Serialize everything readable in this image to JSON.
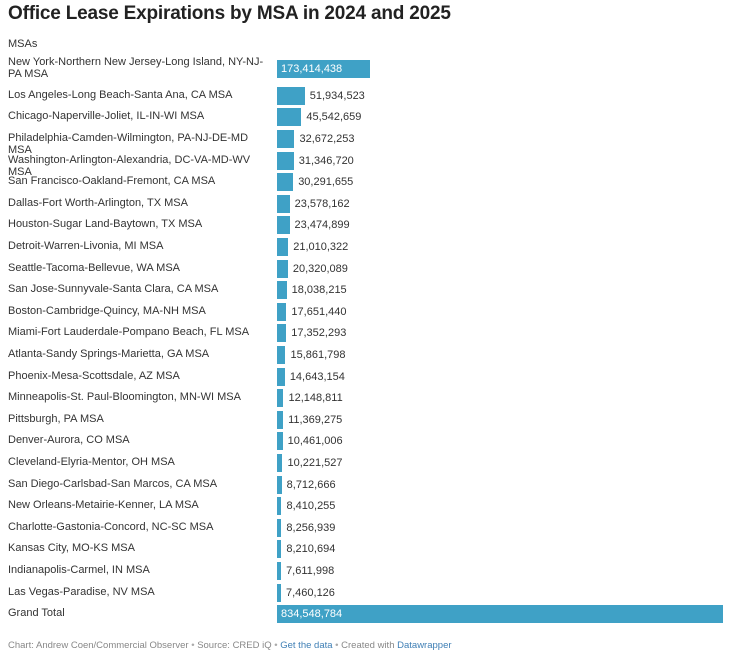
{
  "chart_data": {
    "type": "bar",
    "orientation": "horizontal",
    "title": "Office Lease Expirations by MSA in 2024 and 2025",
    "column_header": "MSAs",
    "categories": [
      "New York-Northern New Jersey-Long Island, NY-NJ-PA MSA",
      "Los Angeles-Long Beach-Santa Ana, CA MSA",
      "Chicago-Naperville-Joliet, IL-IN-WI MSA",
      "Philadelphia-Camden-Wilmington, PA-NJ-DE-MD MSA",
      "Washington-Arlington-Alexandria, DC-VA-MD-WV MSA",
      "San Francisco-Oakland-Fremont, CA MSA",
      "Dallas-Fort Worth-Arlington, TX MSA",
      "Houston-Sugar Land-Baytown, TX MSA",
      "Detroit-Warren-Livonia, MI MSA",
      "Seattle-Tacoma-Bellevue, WA MSA",
      "San Jose-Sunnyvale-Santa Clara, CA MSA",
      "Boston-Cambridge-Quincy, MA-NH MSA",
      "Miami-Fort Lauderdale-Pompano Beach, FL MSA",
      "Atlanta-Sandy Springs-Marietta, GA MSA",
      "Phoenix-Mesa-Scottsdale, AZ MSA",
      "Minneapolis-St. Paul-Bloomington, MN-WI MSA",
      "Pittsburgh, PA MSA",
      "Denver-Aurora, CO MSA",
      "Cleveland-Elyria-Mentor, OH MSA",
      "San Diego-Carlsbad-San Marcos, CA MSA",
      "New Orleans-Metairie-Kenner, LA MSA",
      "Charlotte-Gastonia-Concord, NC-SC MSA",
      "Kansas City, MO-KS MSA",
      "Indianapolis-Carmel, IN MSA",
      "Las Vegas-Paradise, NV MSA",
      "Grand Total"
    ],
    "values": [
      173414438,
      51934523,
      45542659,
      32672253,
      31346720,
      30291655,
      23578162,
      23474899,
      21010322,
      20320089,
      18038215,
      17651440,
      17352293,
      15861798,
      14643154,
      12148811,
      11369275,
      10461006,
      10221527,
      8712666,
      8410255,
      8256939,
      8210694,
      7611998,
      7460126,
      834548784
    ],
    "value_labels": [
      "173,414,438",
      "51,934,523",
      "45,542,659",
      "32,672,253",
      "31,346,720",
      "30,291,655",
      "23,578,162",
      "23,474,899",
      "21,010,322",
      "20,320,089",
      "18,038,215",
      "17,651,440",
      "17,352,293",
      "15,861,798",
      "14,643,154",
      "12,148,811",
      "11,369,275",
      "10,461,006",
      "10,221,527",
      "8,712,666",
      "8,410,255",
      "8,256,939",
      "8,210,694",
      "7,611,998",
      "7,460,126",
      "834,548,784"
    ],
    "xlim": [
      0,
      834548784
    ],
    "bar_color": "#3fa1c6"
  },
  "footer": {
    "chart_credit": "Chart: Andrew Coen/Commercial Observer",
    "source": "Source: CRED iQ",
    "get_data": "Get the data",
    "created_with": "Created with",
    "tool": "Datawrapper"
  }
}
